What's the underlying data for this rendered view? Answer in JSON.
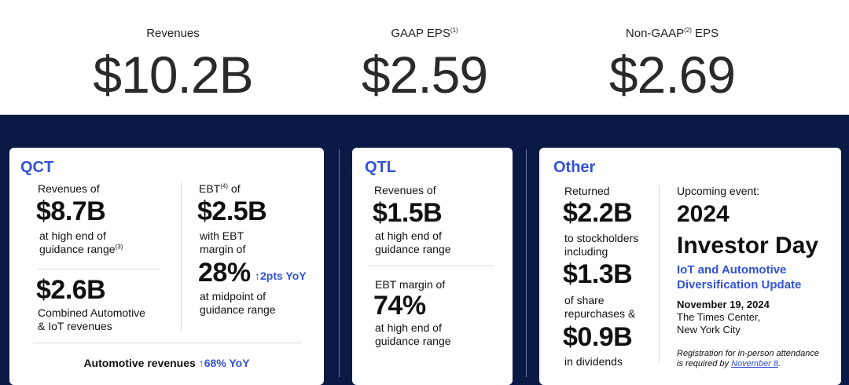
{
  "metrics": [
    {
      "label": "Revenues",
      "sup": "",
      "label_suffix": "",
      "value": "$10.2B"
    },
    {
      "label": "GAAP EPS",
      "sup": "(1)",
      "label_suffix": "",
      "value": "$2.59"
    },
    {
      "label": "Non-GAAP",
      "sup": "(2)",
      "label_suffix": " EPS",
      "value": "$2.69"
    }
  ],
  "qct": {
    "title": "QCT",
    "revenues_label": "Revenues of",
    "revenues_value": "$8.7B",
    "revenues_note_1": "at high end of",
    "revenues_note_2": "guidance range",
    "revenues_note_sup": "(3)",
    "ebt_label": "EBT",
    "ebt_sup": "(4)",
    "ebt_label_suffix": " of",
    "ebt_value": "$2.5B",
    "ebt_note_1": "with EBT",
    "ebt_note_2": "margin of",
    "margin_value": "28%",
    "margin_change": "↑2pts YoY",
    "margin_note_1": "at midpoint of",
    "margin_note_2": "guidance range",
    "auto_iot_value": "$2.6B",
    "auto_iot_note_1": "Combined Automotive",
    "auto_iot_note_2": "& IoT revenues",
    "footer_label": "Automotive revenues",
    "footer_change": "↑68% YoY"
  },
  "qtl": {
    "title": "QTL",
    "revenues_label": "Revenues of",
    "revenues_value": "$1.5B",
    "revenues_note_1": "at high end of",
    "revenues_note_2": "guidance range",
    "ebt_label": "EBT margin of",
    "ebt_value": "74%",
    "ebt_note_1": "at high end of",
    "ebt_note_2": "guidance range"
  },
  "other": {
    "title": "Other",
    "returned_label": "Returned",
    "returned_value": "$2.2B",
    "returned_note_1": "to stockholders",
    "returned_note_2": "including",
    "repurchase_value": "$1.3B",
    "repurchase_note_1": "of share",
    "repurchase_note_2": "repurchases &",
    "dividend_value": "$0.9B",
    "dividend_note": "in dividends",
    "event_label": "Upcoming event:",
    "event_title_1": "2024",
    "event_title_2": "Investor Day",
    "event_sub_1": "IoT and Automotive",
    "event_sub_2": "Diversification Update",
    "event_date": "November 19, 2024",
    "event_venue_1": "The Times Center,",
    "event_venue_2": "New York City",
    "registration_1": "Registration for in-person attendance",
    "registration_2": "is required by",
    "registration_link": "November 8",
    "registration_end": "."
  },
  "colors": {
    "navy": "#0b1a45",
    "accent_blue": "#3352d6"
  }
}
